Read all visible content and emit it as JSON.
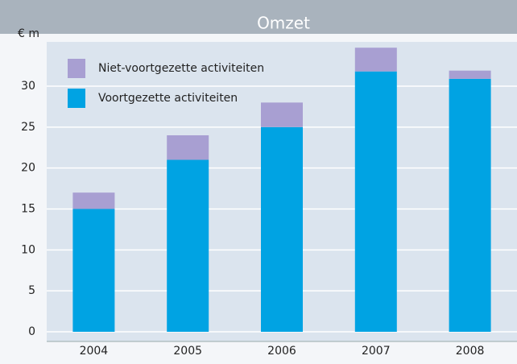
{
  "chart_data": {
    "type": "stacked_bar",
    "title": "Omzet",
    "y_label": "€ m",
    "categories": [
      "2004",
      "2005",
      "2006",
      "2007",
      "2008"
    ],
    "series": [
      {
        "name": "Niet-voortgezette activiteiten",
        "color": "#a89fd2",
        "values": [
          2,
          3,
          3,
          2.9,
          1
        ]
      },
      {
        "name": "Voortgezette activiteiten",
        "color": "#00a3e3",
        "values": [
          15,
          21,
          25,
          31.8,
          30.9
        ]
      }
    ],
    "ylim": [
      0,
      36
    ],
    "yticks": [
      0,
      5,
      10,
      15,
      20,
      25,
      30
    ],
    "grid": true,
    "legend": "top-left"
  }
}
